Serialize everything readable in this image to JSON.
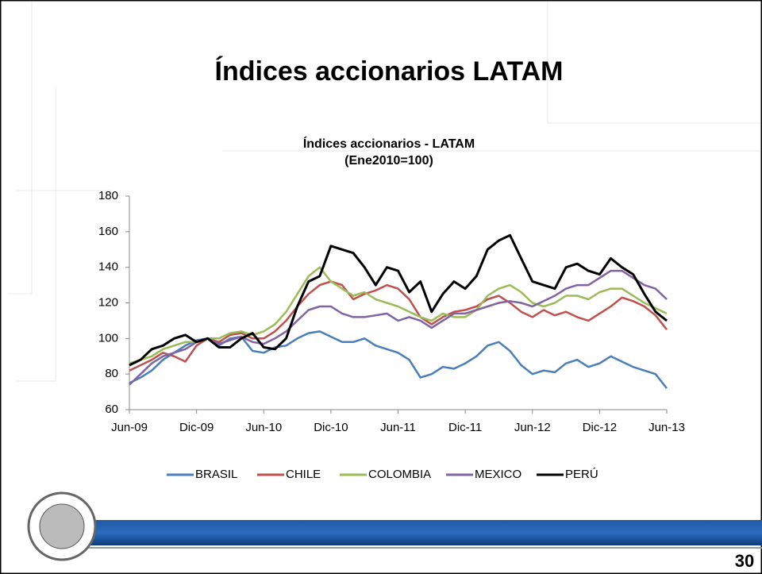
{
  "slide_title": "Índices accionarios LATAM",
  "page_number": "30",
  "chart_data": {
    "type": "line",
    "title": "Índices accionarios - LATAM",
    "subtitle": "(Ene2010=100)",
    "x": [
      0,
      1,
      2,
      3,
      4,
      5,
      6,
      7,
      8,
      9,
      10,
      11,
      12,
      13,
      14,
      15,
      16,
      17,
      18,
      19,
      20,
      21,
      22,
      23,
      24,
      25,
      26,
      27,
      28,
      29,
      30,
      31,
      32,
      33,
      34,
      35,
      36,
      37,
      38,
      39,
      40,
      41,
      42,
      43,
      44,
      45,
      46,
      47,
      48
    ],
    "xlim": [
      0,
      48
    ],
    "xticks": [
      {
        "value": 0,
        "label": "Jun-09"
      },
      {
        "value": 6,
        "label": "Dic-09"
      },
      {
        "value": 12,
        "label": "Jun-10"
      },
      {
        "value": 18,
        "label": "Dic-10"
      },
      {
        "value": 24,
        "label": "Jun-11"
      },
      {
        "value": 30,
        "label": "Dic-11"
      },
      {
        "value": 36,
        "label": "Jun-12"
      },
      {
        "value": 42,
        "label": "Dic-12"
      },
      {
        "value": 48,
        "label": "Jun-13"
      }
    ],
    "ylim": [
      60,
      180
    ],
    "yticks": [
      60,
      80,
      100,
      120,
      140,
      160,
      180
    ],
    "grid": false,
    "legend": "bottom",
    "series": [
      {
        "name": "BRASIL",
        "color": "#4a7ebb",
        "values": [
          75,
          78,
          82,
          88,
          92,
          96,
          99,
          100,
          96,
          100,
          101,
          93,
          92,
          95,
          96,
          100,
          103,
          104,
          101,
          98,
          98,
          100,
          96,
          94,
          92,
          88,
          78,
          80,
          84,
          83,
          86,
          90,
          96,
          98,
          93,
          85,
          80,
          82,
          81,
          86,
          88,
          84,
          86,
          90,
          87,
          84,
          82,
          80,
          72
        ]
      },
      {
        "name": "CHILE",
        "color": "#c0504d",
        "values": [
          82,
          85,
          88,
          92,
          90,
          87,
          96,
          100,
          98,
          102,
          103,
          100,
          100,
          104,
          110,
          118,
          125,
          130,
          132,
          130,
          122,
          125,
          127,
          130,
          128,
          122,
          112,
          108,
          112,
          115,
          116,
          118,
          122,
          124,
          120,
          115,
          112,
          116,
          113,
          115,
          112,
          110,
          114,
          118,
          123,
          121,
          118,
          113,
          105
        ]
      },
      {
        "name": "COLOMBIA",
        "color": "#9bbb59",
        "values": [
          86,
          88,
          90,
          94,
          96,
          98,
          98,
          100,
          100,
          103,
          104,
          102,
          104,
          108,
          115,
          125,
          135,
          140,
          132,
          128,
          124,
          126,
          122,
          120,
          118,
          115,
          112,
          110,
          114,
          112,
          112,
          116,
          124,
          128,
          130,
          126,
          120,
          118,
          120,
          124,
          124,
          122,
          126,
          128,
          128,
          124,
          120,
          117,
          114
        ]
      },
      {
        "name": "MEXICO",
        "color": "#8064a2",
        "values": [
          74,
          80,
          86,
          90,
          92,
          94,
          98,
          100,
          97,
          99,
          101,
          98,
          97,
          100,
          104,
          110,
          116,
          118,
          118,
          114,
          112,
          112,
          113,
          114,
          110,
          112,
          110,
          106,
          110,
          114,
          114,
          116,
          118,
          120,
          121,
          120,
          118,
          121,
          124,
          128,
          130,
          130,
          134,
          138,
          138,
          134,
          130,
          128,
          122
        ]
      },
      {
        "name": "PERÚ",
        "color": "#000000",
        "values": [
          85,
          88,
          94,
          96,
          100,
          102,
          98,
          100,
          95,
          95,
          100,
          103,
          95,
          94,
          100,
          118,
          132,
          135,
          152,
          150,
          148,
          140,
          130,
          140,
          138,
          126,
          132,
          115,
          125,
          132,
          128,
          135,
          150,
          155,
          158,
          145,
          132,
          130,
          128,
          140,
          142,
          138,
          136,
          145,
          140,
          136,
          125,
          115,
          110
        ]
      }
    ]
  }
}
